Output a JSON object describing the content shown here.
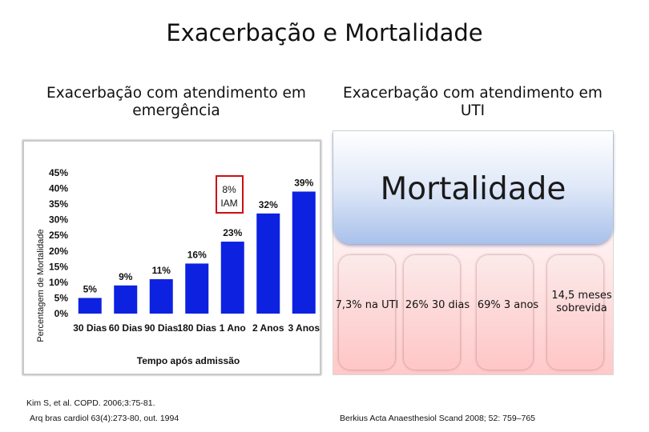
{
  "page": {
    "title": "Exacerbação e Mortalidade",
    "left_subtitle": "Exacerbação com atendimento em emergência",
    "right_subtitle": "Exacerbação com atendimento em UTI"
  },
  "chart_data": {
    "type": "bar",
    "categories": [
      "30 Dias",
      "60 Dias",
      "90 Dias",
      "180 Dias",
      "1 Ano",
      "2 Anos",
      "3 Anos"
    ],
    "values": [
      5,
      9,
      11,
      16,
      23,
      32,
      39
    ],
    "value_labels": [
      "5%",
      "9%",
      "11%",
      "16%",
      "23%",
      "32%",
      "39%"
    ],
    "ylim": [
      0,
      45
    ],
    "yticks": [
      "0%",
      "5%",
      "10%",
      "15%",
      "20%",
      "25%",
      "30%",
      "35%",
      "40%",
      "45%"
    ],
    "xlabel": "Tempo após admissão",
    "ylabel": "Percentagem de Mortalidade",
    "bar_color": "#0d22e0",
    "annotation": {
      "line1": "8%",
      "line2": "IAM"
    }
  },
  "mortality": {
    "header": "Mortalidade",
    "items": [
      "7,3% na UTI",
      "26% 30 dias",
      "69% 3 anos",
      "14,5 meses sobrevida"
    ]
  },
  "references": {
    "left_line1": "Kim S, et al. COPD. 2006;3:75-81.",
    "left_line2": "Arq bras cardiol 63(4):273-80, out. 1994",
    "right": "Berkius Acta Anaesthesiol Scand 2008; 52: 759–765"
  }
}
